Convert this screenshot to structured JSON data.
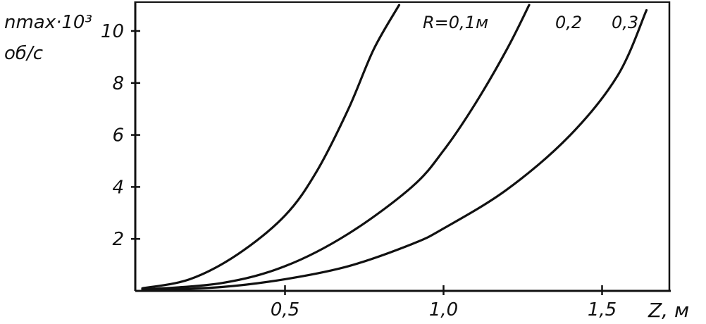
{
  "chart_data": {
    "type": "line",
    "title": "",
    "ylabel_line1": "nmax·10³",
    "ylabel_line2": "об/с",
    "xlabel": "Z, м",
    "xlim": [
      0,
      1.65
    ],
    "ylim": [
      0,
      11
    ],
    "grid": false,
    "x_ticks": [
      {
        "value": 0.5,
        "label": "0,5"
      },
      {
        "value": 1.0,
        "label": "1,0"
      },
      {
        "value": 1.5,
        "label": "1,5"
      }
    ],
    "y_ticks": [
      {
        "value": 2,
        "label": "2"
      },
      {
        "value": 4,
        "label": "4"
      },
      {
        "value": 6,
        "label": "6"
      },
      {
        "value": 8,
        "label": "8"
      },
      {
        "value": 10,
        "label": "10"
      }
    ],
    "series": [
      {
        "name": "R=0,1м",
        "x": [
          0.05,
          0.2,
          0.35,
          0.5,
          0.6,
          0.7,
          0.78,
          0.86
        ],
        "y": [
          0.1,
          0.45,
          1.4,
          2.9,
          4.6,
          7.0,
          9.3,
          11.0
        ]
      },
      {
        "name": "0,2",
        "x": [
          0.05,
          0.3,
          0.5,
          0.7,
          0.9,
          1.0,
          1.1,
          1.2,
          1.27
        ],
        "y": [
          0.05,
          0.3,
          0.95,
          2.2,
          4.0,
          5.4,
          7.2,
          9.3,
          11.0
        ]
      },
      {
        "name": "0,3",
        "x": [
          0.05,
          0.3,
          0.5,
          0.7,
          0.9,
          1.0,
          1.2,
          1.4,
          1.55,
          1.64
        ],
        "y": [
          0.02,
          0.15,
          0.45,
          0.95,
          1.8,
          2.4,
          3.9,
          6.0,
          8.3,
          10.8
        ]
      }
    ]
  }
}
